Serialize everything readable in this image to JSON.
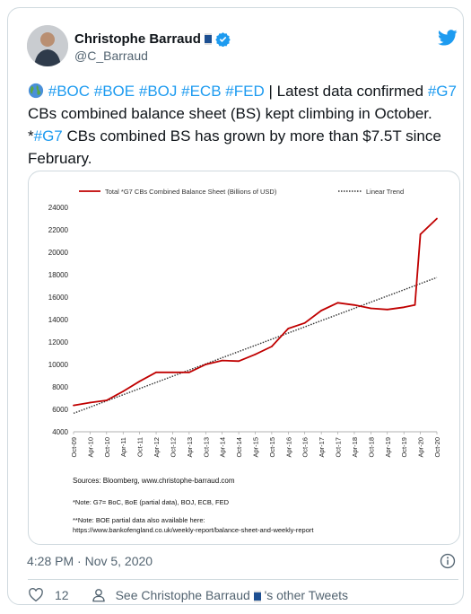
{
  "tweet": {
    "author_name": "Christophe Barraud",
    "author_handle": "@C_Barraud",
    "body": {
      "tags_line": [
        "#BOC",
        "#BOE",
        "#BOJ",
        "#ECB",
        "#FED"
      ],
      "line1_rest": " | Latest data confirmed ",
      "tag_g7": "#G7",
      "line2": "CBs combined balance sheet (BS) kept climbing in October.",
      "line3_prefix": "*",
      "tag_g7b": "#G7",
      "line3_rest": " CBs combined BS has grown by more than $7.5T since",
      "line4": "February."
    },
    "timestamp": "4:28 PM · Nov 5, 2020",
    "like_count": "12",
    "other_tweets_prefix": "See Christophe Barraud",
    "other_tweets_suffix": "'s other Tweets"
  },
  "icons": {
    "bird": "twitter-bird-icon",
    "verified": "verified-badge-icon",
    "globe": "globe-emoji-icon",
    "flag": "flag-emoji-icon",
    "info": "info-icon",
    "heart": "heart-icon",
    "person": "person-icon"
  },
  "colors": {
    "accent": "#1d9bf0",
    "series": "#c00000",
    "trend": "#333333"
  },
  "chart_data": {
    "type": "line",
    "series": [
      {
        "name": "Total *G7 CBs Combined Balance Sheet (Billions of USD)",
        "x": [
          "Oct-09",
          "Apr-10",
          "Oct-10",
          "Apr-11",
          "Oct-11",
          "Apr-12",
          "Oct-12",
          "Apr-13",
          "Oct-13",
          "Apr-14",
          "Oct-14",
          "Apr-15",
          "Oct-15",
          "Apr-16",
          "Oct-16",
          "Apr-17",
          "Oct-17",
          "Apr-18",
          "Oct-18",
          "Apr-19",
          "Oct-19",
          "Feb-20",
          "Apr-20",
          "Oct-20"
        ],
        "values": [
          6350,
          6600,
          6800,
          7600,
          8500,
          9300,
          9300,
          9300,
          10000,
          10350,
          10300,
          10900,
          11600,
          13200,
          13700,
          14800,
          15500,
          15300,
          15000,
          14900,
          15100,
          15300,
          21600,
          23000
        ]
      },
      {
        "name": "Linear Trend",
        "x": [
          "Oct-09",
          "Oct-20"
        ],
        "values": [
          5650,
          17750
        ]
      }
    ],
    "x_ticks": [
      "Oct-09",
      "Apr-10",
      "Oct-10",
      "Apr-11",
      "Oct-11",
      "Apr-12",
      "Oct-12",
      "Apr-13",
      "Oct-13",
      "Apr-14",
      "Oct-14",
      "Apr-15",
      "Oct-15",
      "Apr-16",
      "Oct-16",
      "Apr-17",
      "Oct-17",
      "Apr-18",
      "Oct-18",
      "Apr-19",
      "Oct-19",
      "Apr-20",
      "Oct-20"
    ],
    "y_ticks": [
      "4000",
      "6000",
      "8000",
      "10000",
      "12000",
      "14000",
      "16000",
      "18000",
      "20000",
      "22000",
      "24000"
    ],
    "ylim": [
      4000,
      24000
    ],
    "legend_position": "top",
    "grid": false,
    "notes": {
      "sources": "Sources: Bloomberg, www.christophe-barraud.com",
      "note1": "*Note: G7= BoC, BoE (partial data), BOJ, ECB, FED",
      "note2a": "**Note: BOE partial data also available here:",
      "note2b": "https://www.bankofengland.co.uk/weekly-report/balance-sheet-and-weekly-report"
    }
  }
}
